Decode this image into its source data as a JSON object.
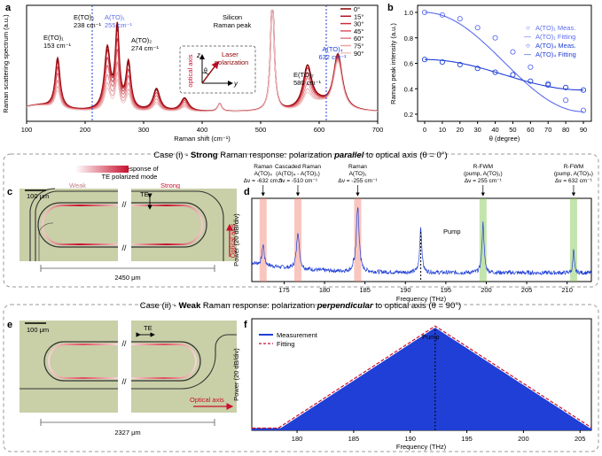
{
  "panel_labels": {
    "a": "a",
    "b": "b",
    "c": "c",
    "d": "d",
    "e": "e",
    "f": "f"
  },
  "colors": {
    "red_dark": "#8b0000",
    "red": "#c8102e",
    "blue": "#1f3fd6",
    "blue_light": "#5c6cf0",
    "green": "#7cc44a",
    "salmon": "#f08070",
    "border_gray": "#9a9a9a",
    "micrograph_bg": "#c9cfa7"
  },
  "panel_a": {
    "ylabel": "Raman scattering spectrum (a.u.)",
    "xlabel": "Raman shift (cm⁻¹)",
    "xticks": [
      "100",
      "200",
      "300",
      "400",
      "500",
      "600",
      "700"
    ],
    "peaks": [
      {
        "l1": "E(TO)₁",
        "l2": "153 cm⁻¹"
      },
      {
        "l1": "E(TO)₂",
        "l2": "238 cm⁻¹"
      },
      {
        "l1": "A(TO)₁",
        "l2": "255 cm⁻¹"
      },
      {
        "l1": "A(TO)₂",
        "l2": "274 cm⁻¹"
      },
      {
        "l1": "Silicon",
        "l2": "Raman peak"
      },
      {
        "l1": "E(TO)₇",
        "l2": "580 cm⁻¹"
      },
      {
        "l1": "A(TO)₄",
        "l2": "632 cm⁻¹"
      }
    ],
    "inset": {
      "laser": "Laser",
      "polarization": "polarization",
      "optical_axis": "optical axis",
      "z": "z",
      "y": "y",
      "theta": "θ"
    },
    "legend": [
      "0°",
      "15°",
      "30°",
      "45°",
      "60°",
      "75°",
      "90°"
    ]
  },
  "chart_data": [
    {
      "type": "line",
      "title": "",
      "xlabel": "Raman shift (cm⁻¹)",
      "ylabel": "Raman scattering spectrum (a.u.)",
      "xlim": [
        100,
        700
      ],
      "peaks_x": [
        153,
        238,
        255,
        274,
        520,
        580,
        632
      ],
      "series": [
        {
          "name": "0°",
          "scale": 1.0
        },
        {
          "name": "15°",
          "scale": 0.93
        },
        {
          "name": "30°",
          "scale": 0.82
        },
        {
          "name": "45°",
          "scale": 0.7
        },
        {
          "name": "60°",
          "scale": 0.56
        },
        {
          "name": "75°",
          "scale": 0.44
        },
        {
          "name": "90°",
          "scale": 0.36
        }
      ]
    },
    {
      "type": "scatter",
      "xlabel": "θ (degree)",
      "ylabel": "Raman peak intensity (a.u.)",
      "xlim": [
        0,
        90
      ],
      "ylim": [
        0.2,
        1.0
      ],
      "x": [
        0,
        10,
        20,
        30,
        40,
        50,
        60,
        70,
        80,
        90
      ],
      "xticks": [
        "0",
        "10",
        "20",
        "30",
        "40",
        "50",
        "60",
        "70",
        "80",
        "90"
      ],
      "yticks": [
        "0.2",
        "0.4",
        "0.6",
        "0.8",
        "1.0"
      ],
      "series": [
        {
          "name": "A(TO)₁ Meas.",
          "fit": "A(TO)₁ Fitting",
          "values": [
            1.0,
            0.98,
            0.95,
            0.88,
            0.8,
            0.69,
            0.57,
            0.44,
            0.31,
            0.23
          ]
        },
        {
          "name": "A(TO)₄ Meas.",
          "fit": "A(TO)₄ Fitting",
          "values": [
            0.63,
            0.61,
            0.59,
            0.56,
            0.53,
            0.51,
            0.46,
            0.43,
            0.41,
            0.39
          ]
        }
      ]
    },
    {
      "type": "line",
      "xlabel": "Frequency (THz)",
      "ylabel": "Power (20 dB/div)",
      "xlim": [
        171,
        213
      ],
      "xticks": [
        "175",
        "180",
        "185",
        "190",
        "195",
        "200",
        "205",
        "210"
      ],
      "peaks": [
        172.4,
        176.7,
        184.1,
        191.9,
        199.6,
        210.8
      ],
      "highlights": [
        {
          "x": 172.4,
          "color": "salmon"
        },
        {
          "x": 176.7,
          "color": "salmon"
        },
        {
          "x": 184.1,
          "color": "salmon"
        },
        {
          "x": 199.6,
          "color": "green"
        },
        {
          "x": 210.8,
          "color": "green"
        }
      ]
    },
    {
      "type": "line",
      "xlabel": "Frequency (THz)",
      "ylabel": "Power (20 dB/div)",
      "xlim": [
        176,
        206
      ],
      "xticks": [
        "180",
        "185",
        "190",
        "195",
        "200",
        "205"
      ],
      "pump": 192.2,
      "legend": [
        "Measurement",
        "Fitting"
      ]
    }
  ],
  "panel_b": {
    "legend": [
      {
        "sym": "○",
        "text": "A(TO)₁ Meas."
      },
      {
        "sym": "—",
        "text": "A(TO)₁ Fitting"
      },
      {
        "sym": "○",
        "text": "A(TO)₄ Meas."
      },
      {
        "sym": "—",
        "text": "A(TO)₄ Fitting"
      }
    ]
  },
  "case1": {
    "prefix": "Case (i) - ",
    "bold": "Strong",
    "mid": " Raman response: polarization ",
    "italic": "parallel",
    "suffix": " to optical axis (θ = 0°)"
  },
  "case2": {
    "prefix": "Case (ii) - ",
    "bold": "Weak",
    "mid": " Raman response: polarization ",
    "italic": "perpendicular",
    "suffix": " to optical axis (θ = 90°)"
  },
  "colorbar": {
    "title1": "Raman response of",
    "title2": "TE polarized mode",
    "weak": "Weak",
    "strong": "Strong"
  },
  "panel_c": {
    "scale": "100 μm",
    "te": "TE",
    "axis": "Optical axis",
    "length": "2450 μm",
    "break": "//"
  },
  "panel_e": {
    "scale": "100 μm",
    "te": "TE",
    "axis": "Optical axis",
    "length": "2327 μm",
    "break": "//"
  },
  "panel_d": {
    "annotations": [
      {
        "l1": "Raman",
        "l2": "A(TO)₄",
        "l3": "Δν = -632 cm⁻¹"
      },
      {
        "l1": "Cascaded Raman",
        "l2": "(A(TO)₄ - A(TO)₁)",
        "l3": "Δν = -510 cm⁻¹"
      },
      {
        "l1": "Raman",
        "l2": "A(TO)₁",
        "l3": "Δν = -255 cm⁻¹"
      },
      {
        "l1": "R-FWM",
        "l2": "(pump, A(TO)₁)",
        "l3": "Δν = 255 cm⁻¹"
      },
      {
        "l1": "R-FWM",
        "l2": "(pump, A(TO)₄)",
        "l3": "Δν = 632 cm⁻¹"
      }
    ],
    "pump": "Pump"
  },
  "panel_f": {
    "pump": "Pump"
  }
}
